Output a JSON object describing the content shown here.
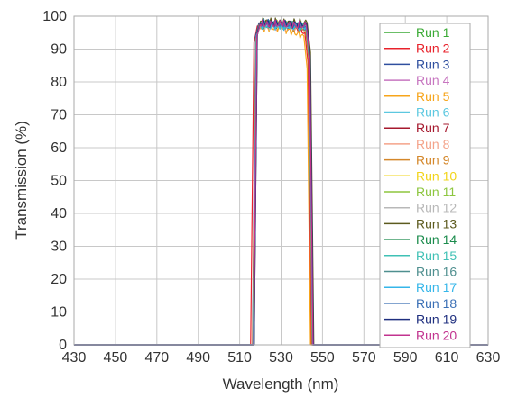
{
  "chart_data": {
    "type": "line",
    "title": "",
    "xlabel": "Wavelength (nm)",
    "ylabel": "Transmission (%)",
    "xlim": [
      430,
      630
    ],
    "ylim": [
      0,
      100
    ],
    "x_ticks": [
      430,
      450,
      470,
      490,
      510,
      530,
      550,
      570,
      590,
      610,
      630
    ],
    "y_ticks": [
      0,
      10,
      20,
      30,
      40,
      50,
      60,
      70,
      80,
      90,
      100
    ],
    "grid": true,
    "legend_position": "top-right",
    "series": [
      {
        "name": "Run 1",
        "color": "#3aaa35",
        "x": [
          430,
          516.9,
          518.4,
          520.0,
          530,
          542.0,
          543.6,
          545.1,
          630
        ],
        "y": [
          0,
          0,
          95,
          97.5,
          97.5,
          97.0,
          88,
          0,
          0
        ]
      },
      {
        "name": "Run 2",
        "color": "#e8222b",
        "x": [
          430,
          515.3,
          516.9,
          518.5,
          530,
          541.5,
          543.0,
          544.6,
          630
        ],
        "y": [
          0,
          0,
          92,
          97.0,
          97.5,
          95.0,
          86,
          0,
          0
        ]
      },
      {
        "name": "Run 3",
        "color": "#2f4f9f",
        "x": [
          430,
          516.2,
          517.7,
          519.3,
          530,
          541.9,
          543.4,
          545.0,
          630
        ],
        "y": [
          0,
          0,
          94,
          98.0,
          97.0,
          96.5,
          87,
          0,
          0
        ]
      },
      {
        "name": "Run 4",
        "color": "#c776c0",
        "x": [
          430,
          516.6,
          518.1,
          519.7,
          530,
          542.1,
          543.7,
          545.3,
          630
        ],
        "y": [
          0,
          0,
          94,
          97.5,
          97.5,
          97.0,
          88,
          0,
          0
        ]
      },
      {
        "name": "Run 5",
        "color": "#f7a51b",
        "x": [
          430,
          516.4,
          517.9,
          519.5,
          530,
          541.0,
          542.6,
          544.2,
          630
        ],
        "y": [
          0,
          0,
          93,
          96.5,
          96.5,
          94.0,
          84,
          0,
          0
        ]
      },
      {
        "name": "Run 6",
        "color": "#5cc8e0",
        "x": [
          430,
          516.8,
          518.3,
          519.9,
          530,
          542.3,
          543.9,
          545.5,
          630
        ],
        "y": [
          0,
          0,
          94,
          97.5,
          98.0,
          97.0,
          88,
          0,
          0
        ]
      },
      {
        "name": "Run 7",
        "color": "#a6192e",
        "x": [
          430,
          516.7,
          518.2,
          519.8,
          530,
          542.2,
          543.8,
          545.4,
          630
        ],
        "y": [
          0,
          0,
          94,
          98.0,
          97.5,
          97.0,
          88,
          0,
          0
        ]
      },
      {
        "name": "Run 8",
        "color": "#f4a38a",
        "x": [
          430,
          516.5,
          518.0,
          519.6,
          530,
          542.0,
          543.6,
          545.2,
          630
        ],
        "y": [
          0,
          0,
          93,
          97.0,
          97.0,
          96.5,
          87,
          0,
          0
        ]
      },
      {
        "name": "Run 9",
        "color": "#d4872a",
        "x": [
          430,
          516.3,
          517.8,
          519.4,
          530,
          541.8,
          543.4,
          545.0,
          630
        ],
        "y": [
          0,
          0,
          93,
          97.5,
          97.5,
          96.0,
          87,
          0,
          0
        ]
      },
      {
        "name": "Run 10",
        "color": "#f2d41a",
        "x": [
          430,
          516.6,
          518.1,
          519.7,
          530,
          542.1,
          543.7,
          545.3,
          630
        ],
        "y": [
          0,
          0,
          94,
          97.5,
          98.0,
          97.0,
          88,
          0,
          0
        ]
      },
      {
        "name": "Run 11",
        "color": "#8dc63f",
        "x": [
          430,
          516.9,
          518.4,
          520.0,
          530,
          542.4,
          544.0,
          545.6,
          630
        ],
        "y": [
          0,
          0,
          95,
          98.0,
          97.5,
          97.0,
          88,
          0,
          0
        ]
      },
      {
        "name": "Run 12",
        "color": "#b8b8b8",
        "x": [
          430,
          516.8,
          518.3,
          519.9,
          530,
          542.2,
          543.8,
          545.4,
          630
        ],
        "y": [
          0,
          0,
          94,
          97.0,
          97.5,
          97.0,
          88,
          0,
          0
        ]
      },
      {
        "name": "Run 13",
        "color": "#5c5a1e",
        "x": [
          430,
          517.0,
          518.5,
          520.1,
          530,
          542.6,
          544.2,
          545.8,
          630
        ],
        "y": [
          0,
          0,
          95,
          98.5,
          98.0,
          98.0,
          89,
          0,
          0
        ]
      },
      {
        "name": "Run 14",
        "color": "#1a8b4c",
        "x": [
          430,
          516.9,
          518.4,
          520.0,
          530,
          542.3,
          543.9,
          545.5,
          630
        ],
        "y": [
          0,
          0,
          94,
          97.5,
          97.5,
          97.0,
          88,
          0,
          0
        ]
      },
      {
        "name": "Run 15",
        "color": "#3fc1b5",
        "x": [
          430,
          516.7,
          518.2,
          519.8,
          530,
          542.2,
          543.8,
          545.4,
          630
        ],
        "y": [
          0,
          0,
          94,
          97.5,
          97.5,
          97.0,
          88,
          0,
          0
        ]
      },
      {
        "name": "Run 16",
        "color": "#4f8f8f",
        "x": [
          430,
          516.5,
          518.0,
          519.6,
          530,
          542.0,
          543.6,
          545.2,
          630
        ],
        "y": [
          0,
          0,
          93,
          97.0,
          97.5,
          96.5,
          87,
          0,
          0
        ]
      },
      {
        "name": "Run 17",
        "color": "#35b6e9",
        "x": [
          430,
          516.6,
          518.1,
          519.7,
          530,
          542.1,
          543.7,
          545.3,
          630
        ],
        "y": [
          0,
          0,
          94,
          97.5,
          97.0,
          97.0,
          88,
          0,
          0
        ]
      },
      {
        "name": "Run 18",
        "color": "#3a6fb5",
        "x": [
          430,
          516.8,
          518.3,
          519.9,
          530,
          542.3,
          543.9,
          545.5,
          630
        ],
        "y": [
          0,
          0,
          94,
          98.0,
          97.5,
          97.0,
          88,
          0,
          0
        ]
      },
      {
        "name": "Run 19",
        "color": "#1f2f7f",
        "x": [
          430,
          517.0,
          518.5,
          520.1,
          530,
          542.4,
          544.0,
          545.6,
          630
        ],
        "y": [
          0,
          0,
          95,
          98.0,
          98.0,
          97.5,
          88,
          0,
          0
        ]
      },
      {
        "name": "Run 20",
        "color": "#c2338f",
        "x": [
          430,
          516.8,
          518.3,
          519.9,
          530,
          542.2,
          543.8,
          545.4,
          630
        ],
        "y": [
          0,
          0,
          94,
          97.5,
          97.5,
          97.0,
          88,
          0,
          0
        ]
      }
    ]
  }
}
